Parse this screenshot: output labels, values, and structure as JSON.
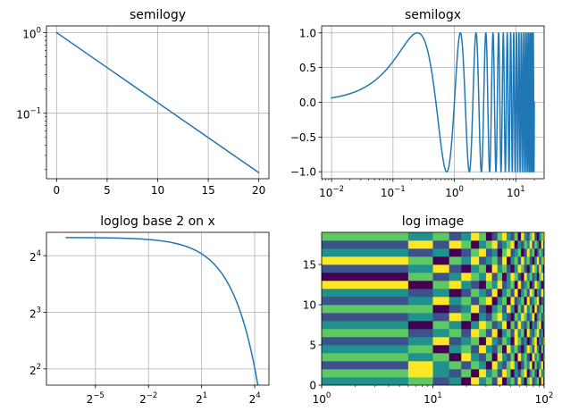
{
  "chart_data": [
    {
      "type": "line",
      "title": "semilogy",
      "xscale": "linear",
      "yscale": "log",
      "xlim": [
        -1,
        21
      ],
      "ylim": [
        0.0154,
        1.21
      ],
      "grid": true,
      "x_ticks": [
        "0",
        "5",
        "10",
        "15",
        "20"
      ],
      "y_ticks": [
        {
          "base": "10",
          "exp": "0"
        },
        {
          "base": "10",
          "exp": "−1"
        }
      ],
      "series": [
        {
          "color": "#1f77b4",
          "x": [
            0,
            20
          ],
          "y": [
            1.0,
            0.0183
          ]
        }
      ]
    },
    {
      "type": "line",
      "title": "semilogx",
      "xscale": "log",
      "yscale": "linear",
      "xlim": [
        0.0069,
        28.9
      ],
      "ylim": [
        -1.1,
        1.1
      ],
      "grid": true,
      "x_ticks": [
        {
          "base": "10",
          "exp": "−2"
        },
        {
          "base": "10",
          "exp": "−1"
        },
        {
          "base": "10",
          "exp": "0"
        },
        {
          "base": "10",
          "exp": "1"
        }
      ],
      "y_ticks": [
        "−1.0",
        "−0.5",
        "0.0",
        "0.5",
        "1.0"
      ],
      "series": [
        {
          "color": "#1f77b4",
          "function": "sin(2*pi*x)",
          "x_range": [
            0.01,
            20.0
          ]
        }
      ]
    },
    {
      "type": "line",
      "title": "loglog base 2 on x",
      "xscale": "log2",
      "yscale": "log2",
      "xlim": [
        0.0046,
        27.9
      ],
      "ylim": [
        3.28,
        21.3
      ],
      "grid": true,
      "x_ticks": [
        {
          "base": "2",
          "exp": "−5"
        },
        {
          "base": "2",
          "exp": "−2"
        },
        {
          "base": "2",
          "exp": "1"
        },
        {
          "base": "2",
          "exp": "4"
        }
      ],
      "y_ticks": [
        {
          "base": "2",
          "exp": "2"
        },
        {
          "base": "2",
          "exp": "3"
        },
        {
          "base": "2",
          "exp": "4"
        }
      ],
      "series": [
        {
          "color": "#1f77b4",
          "function": "20*exp(-x/10)",
          "x_range": [
            0.01,
            20.0
          ]
        }
      ]
    },
    {
      "type": "heatmap",
      "title": "log image",
      "xscale": "log",
      "yscale": "linear",
      "xlim": [
        1,
        100
      ],
      "ylim": [
        0,
        19
      ],
      "grid": false,
      "x_ticks": [
        {
          "base": "10",
          "exp": "0"
        },
        {
          "base": "10",
          "exp": "1"
        },
        {
          "base": "10",
          "exp": "2"
        }
      ],
      "y_ticks": [
        "0",
        "5",
        "10",
        "15"
      ],
      "colormap": "viridis",
      "rows": 19,
      "x_edges": [
        1,
        6,
        10,
        14,
        18,
        22,
        26,
        30,
        34,
        38,
        42,
        46,
        50,
        54,
        58,
        62,
        66,
        70,
        74,
        78,
        82,
        86,
        90,
        94,
        98,
        100
      ],
      "palette": [
        "#440154",
        "#3b528b",
        "#21918c",
        "#5ec962",
        "#fde725"
      ],
      "values": [
        [
          2,
          3,
          1,
          2,
          0,
          4,
          2,
          3,
          1,
          4,
          0,
          2,
          3,
          1,
          4,
          2,
          0,
          3,
          4,
          1,
          2,
          3,
          0,
          4,
          1
        ],
        [
          3,
          4,
          2,
          1,
          3,
          0,
          4,
          2,
          3,
          1,
          4,
          3,
          0,
          2,
          1,
          3,
          4,
          0,
          2,
          3,
          1,
          0,
          4,
          2,
          3
        ],
        [
          1,
          4,
          2,
          3,
          1,
          3,
          2,
          0,
          4,
          2,
          1,
          3,
          4,
          2,
          0,
          1,
          3,
          2,
          4,
          0,
          3,
          1,
          2,
          4,
          0
        ],
        [
          3,
          2,
          3,
          0,
          4,
          2,
          1,
          3,
          0,
          4,
          2,
          1,
          3,
          0,
          4,
          2,
          3,
          1,
          0,
          4,
          2,
          3,
          1,
          0,
          3
        ],
        [
          2,
          3,
          0,
          2,
          3,
          1,
          4,
          2,
          1,
          3,
          0,
          4,
          2,
          3,
          1,
          0,
          2,
          4,
          3,
          1,
          4,
          2,
          0,
          3,
          1
        ],
        [
          1,
          2,
          4,
          1,
          2,
          3,
          0,
          4,
          2,
          1,
          3,
          2,
          0,
          4,
          3,
          1,
          2,
          0,
          1,
          3,
          4,
          0,
          2,
          1,
          4
        ],
        [
          3,
          1,
          2,
          3,
          1,
          4,
          3,
          1,
          4,
          0,
          2,
          3,
          1,
          4,
          2,
          3,
          0,
          4,
          2,
          1,
          3,
          4,
          1,
          2,
          0
        ],
        [
          2,
          0,
          3,
          2,
          0,
          2,
          4,
          3,
          1,
          2,
          4,
          0,
          3,
          1,
          4,
          2,
          1,
          3,
          0,
          2,
          1,
          3,
          4,
          0,
          2
        ],
        [
          1,
          2,
          1,
          4,
          3,
          0,
          2,
          1,
          3,
          4,
          2,
          1,
          0,
          3,
          2,
          4,
          3,
          1,
          2,
          4,
          0,
          2,
          3,
          1,
          3
        ],
        [
          3,
          3,
          0,
          1,
          2,
          4,
          1,
          0,
          2,
          3,
          1,
          4,
          2,
          0,
          3,
          1,
          4,
          2,
          3,
          0,
          4,
          1,
          2,
          3,
          1
        ],
        [
          1,
          2,
          4,
          2,
          3,
          1,
          3,
          4,
          0,
          2,
          3,
          0,
          4,
          1,
          2,
          3,
          0,
          4,
          1,
          2,
          3,
          4,
          0,
          1,
          2
        ],
        [
          2,
          1,
          2,
          0,
          1,
          3,
          2,
          1,
          4,
          0,
          2,
          3,
          1,
          4,
          0,
          2,
          3,
          1,
          4,
          3,
          0,
          2,
          1,
          4,
          3
        ],
        [
          4,
          0,
          3,
          4,
          2,
          1,
          0,
          3,
          2,
          4,
          1,
          2,
          3,
          0,
          4,
          1,
          2,
          3,
          0,
          1,
          4,
          3,
          2,
          0,
          1
        ],
        [
          0,
          3,
          1,
          2,
          4,
          3,
          2,
          4,
          1,
          3,
          0,
          2,
          4,
          3,
          1,
          0,
          4,
          2,
          3,
          1,
          2,
          0,
          3,
          4,
          2
        ],
        [
          1,
          2,
          4,
          1,
          0,
          2,
          3,
          0,
          4,
          2,
          3,
          1,
          0,
          2,
          4,
          3,
          1,
          0,
          2,
          4,
          3,
          1,
          4,
          2,
          0
        ],
        [
          4,
          3,
          0,
          3,
          2,
          4,
          1,
          2,
          3,
          1,
          4,
          0,
          2,
          3,
          1,
          4,
          2,
          3,
          1,
          0,
          2,
          4,
          1,
          3,
          4
        ],
        [
          2,
          1,
          2,
          0,
          1,
          3,
          4,
          1,
          2,
          0,
          3,
          4,
          1,
          2,
          3,
          0,
          1,
          4,
          2,
          3,
          0,
          1,
          3,
          2,
          1
        ],
        [
          1,
          4,
          1,
          4,
          3,
          0,
          2,
          3,
          4,
          1,
          2,
          3,
          4,
          0,
          2,
          1,
          3,
          2,
          4,
          1,
          3,
          2,
          0,
          4,
          2
        ],
        [
          3,
          2,
          3,
          1,
          2,
          4,
          3,
          0,
          1,
          3,
          4,
          2,
          1,
          3,
          0,
          4,
          2,
          1,
          3,
          4,
          1,
          0,
          2,
          3,
          4
        ]
      ]
    }
  ]
}
